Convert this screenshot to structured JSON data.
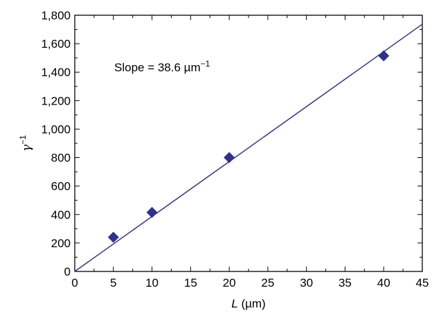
{
  "chart_data": {
    "type": "scatter",
    "xlabel": {
      "var": "L",
      "unit": " (µm)"
    },
    "ylabel": {
      "var": "γ",
      "sup": "−1"
    },
    "xlim": [
      0,
      45
    ],
    "ylim": [
      0,
      1800
    ],
    "xticks": [
      0,
      5,
      10,
      15,
      20,
      25,
      30,
      35,
      40,
      45
    ],
    "yticks": [
      0,
      200,
      400,
      600,
      800,
      1000,
      1200,
      1400,
      1600,
      1800
    ],
    "ytick_labels": [
      "0",
      "200",
      "400",
      "600",
      "800",
      "1,000",
      "1,200",
      "1,400",
      "1,600",
      "1,800"
    ],
    "series": [
      {
        "marker": "diamond",
        "color": "#2e3192",
        "x": [
          5,
          10,
          20,
          40
        ],
        "y": [
          240,
          415,
          800,
          1515
        ]
      }
    ],
    "fit_line": {
      "color": "#2e3192",
      "slope": 38.6,
      "intercept": 0
    },
    "annotation": {
      "text": "Slope = 38.6 µm",
      "sup": "−1"
    },
    "grid": false
  }
}
